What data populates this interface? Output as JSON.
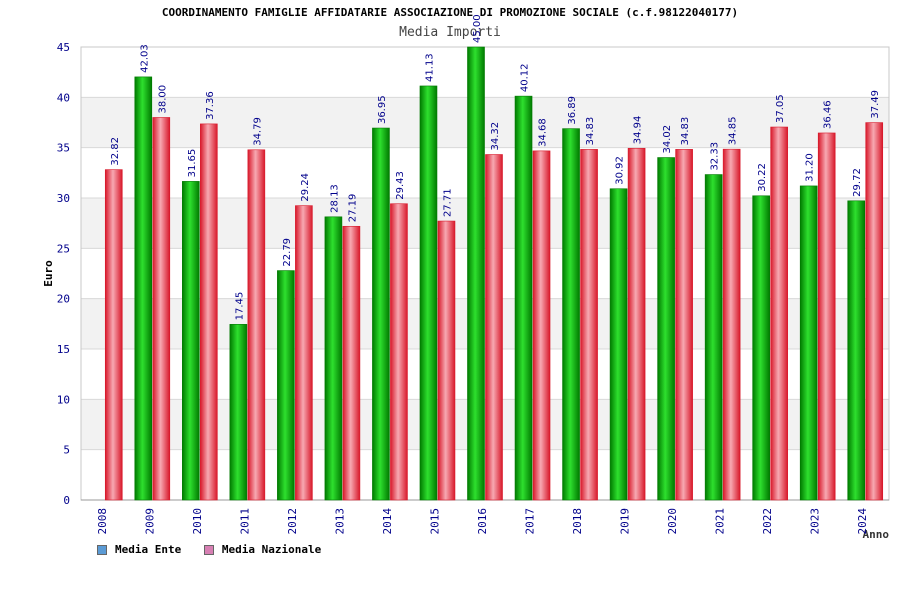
{
  "header": {
    "title": "COORDINAMENTO FAMIGLIE AFFIDATARIE ASSOCIAZIONE DI PROMOZIONE SOCIALE (c.f.98122040177)",
    "subtitle": "Media Importi"
  },
  "legend": {
    "items": [
      {
        "label": "Media Ente",
        "color": "#5b9bd5"
      },
      {
        "label": "Media Nazionale",
        "color": "#d77fb3"
      }
    ]
  },
  "colors": {
    "green_dark": "#007a00",
    "green_light": "#22dd22",
    "red_dark": "#d8182a",
    "red_light": "#f7a9b2",
    "grid_band": "#f2f2f2",
    "axis_text": "#00008b"
  },
  "chart_data": {
    "type": "bar",
    "xlabel": "Anno",
    "ylabel": "Euro",
    "ylim": [
      0,
      45
    ],
    "yticks": [
      0,
      5,
      10,
      15,
      20,
      25,
      30,
      35,
      40,
      45
    ],
    "categories": [
      "2008",
      "2009",
      "2010",
      "2011",
      "2012",
      "2013",
      "2014",
      "2015",
      "2016",
      "2017",
      "2018",
      "2019",
      "2020",
      "2021",
      "2022",
      "2023",
      "2024"
    ],
    "series": [
      {
        "name": "Media Ente",
        "values": [
          null,
          42.03,
          31.65,
          17.45,
          22.79,
          28.13,
          36.95,
          41.13,
          45.0,
          40.12,
          36.89,
          30.92,
          34.02,
          32.33,
          30.22,
          31.2,
          29.72
        ],
        "labels": [
          "",
          "42.03",
          "31.65",
          "17.45",
          "22.79",
          "28.13",
          "36.95",
          "41.13",
          "45.00",
          "40.12",
          "36.89",
          "30.92",
          "34.02",
          "32.33",
          "30.22",
          "31.20",
          "29.72"
        ]
      },
      {
        "name": "Media Nazionale",
        "values": [
          32.82,
          38.0,
          37.36,
          34.79,
          29.24,
          27.19,
          29.43,
          27.71,
          34.32,
          34.68,
          34.83,
          34.94,
          34.83,
          34.85,
          37.05,
          36.46,
          37.49
        ],
        "labels": [
          "32.82",
          "38.00",
          "37.36",
          "34.79",
          "29.24",
          "27.19",
          "29.43",
          "27.71",
          "34.32",
          "34.68",
          "34.83",
          "34.94",
          "34.83",
          "34.85",
          "37.05",
          "36.46",
          "37.49"
        ]
      }
    ]
  }
}
